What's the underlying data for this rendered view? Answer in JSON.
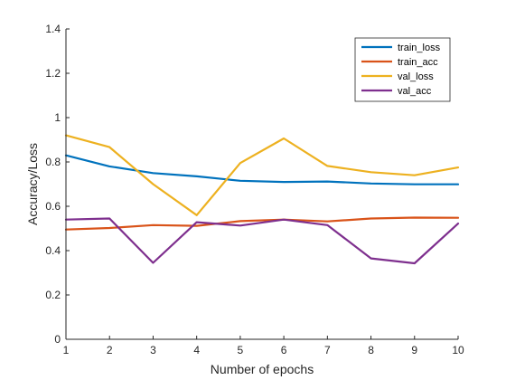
{
  "chart_data": {
    "type": "line",
    "title": "",
    "xlabel": "Number of epochs",
    "ylabel": "Accuracy/Loss",
    "xlim": [
      1,
      10
    ],
    "ylim": [
      0,
      1.4
    ],
    "x": [
      1,
      2,
      3,
      4,
      5,
      6,
      7,
      8,
      9,
      10
    ],
    "x_ticks": [
      "1",
      "2",
      "3",
      "4",
      "5",
      "6",
      "7",
      "8",
      "9",
      "10"
    ],
    "y_ticks": [
      "0",
      "0.2",
      "0.4",
      "0.6",
      "0.8",
      "1",
      "1.2",
      "1.4"
    ],
    "y_tick_values": [
      0,
      0.2,
      0.4,
      0.6,
      0.8,
      1,
      1.2,
      1.4
    ],
    "grid": false,
    "legend_position": "top-right",
    "series": [
      {
        "name": "train_loss",
        "color": "#0072BD",
        "values": [
          0.83,
          0.78,
          0.75,
          0.735,
          0.715,
          0.71,
          0.712,
          0.703,
          0.699,
          0.699
        ]
      },
      {
        "name": "train_acc",
        "color": "#D95319",
        "values": [
          0.495,
          0.502,
          0.515,
          0.512,
          0.533,
          0.54,
          0.532,
          0.545,
          0.549,
          0.548
        ]
      },
      {
        "name": "val_loss",
        "color": "#EDB120",
        "values": [
          0.92,
          0.867,
          0.7,
          0.56,
          0.795,
          0.906,
          0.782,
          0.754,
          0.74,
          0.775
        ]
      },
      {
        "name": "val_acc",
        "color": "#7E2F8E",
        "values": [
          0.54,
          0.545,
          0.345,
          0.528,
          0.513,
          0.54,
          0.515,
          0.365,
          0.343,
          0.522
        ]
      }
    ]
  }
}
